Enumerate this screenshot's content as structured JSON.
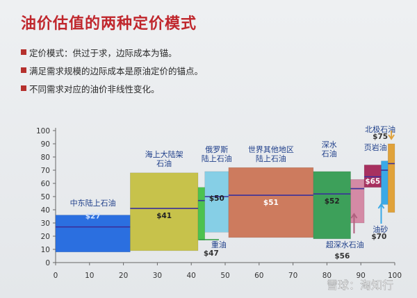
{
  "title": "油价估值的两种定价模式",
  "bullets": [
    "定价模式：供过于求，边际成本为锚。",
    "满足需求规模的边际成本是原油定价的锚点。",
    "不同需求对应的油价非线性变化。"
  ],
  "watermark": "雪球：淘知行",
  "chart_data": {
    "type": "bar",
    "x_ticks": [
      0,
      10,
      20,
      30,
      40,
      50,
      60,
      70,
      80,
      90,
      100
    ],
    "x_tick_labels": [
      "0",
      "10",
      "20",
      "30",
      "40",
      "50",
      "60",
      "70",
      "80",
      "90",
      "100"
    ],
    "xlim": [
      0,
      100
    ],
    "y_ticks": [
      0,
      10,
      20,
      30,
      40,
      50,
      60,
      70,
      80,
      90,
      100
    ],
    "ylim": [
      0,
      100
    ],
    "grid": false,
    "legend": "none",
    "series": [
      {
        "label": "中东陆上石油",
        "value_label": "$27",
        "x0": 0,
        "x1": 22,
        "y0": 8,
        "y1": 36,
        "price": 27,
        "color": "#2b6fe0",
        "value_color": "#cfe1ff"
      },
      {
        "label": "海上大陆架\n石油",
        "value_label": "$41",
        "x0": 22,
        "x1": 42,
        "y0": 9,
        "y1": 68,
        "price": 41,
        "color": "#c7c24b",
        "value_color": "#222222"
      },
      {
        "label": "重油",
        "value_label": "$47",
        "x0": 42,
        "x1": 44,
        "y0": 17,
        "y1": 57,
        "price": 47,
        "color": "#4cc24f",
        "value_color": "#222222"
      },
      {
        "label": "俄罗斯\n陆上石油",
        "value_label": "$50",
        "x0": 44,
        "x1": 51,
        "y0": 23,
        "y1": 69,
        "price": 50,
        "color": "#86cfe6",
        "value_color": "#222222"
      },
      {
        "label": "世界其他地区\n陆上石油",
        "value_label": "$51",
        "x0": 51,
        "x1": 76,
        "y0": 19,
        "y1": 72,
        "price": 51,
        "color": "#cd7b5e",
        "value_color": "#ffffff"
      },
      {
        "label": "深水\n石油",
        "value_label": "$52",
        "x0": 76,
        "x1": 87,
        "y0": 18,
        "y1": 69,
        "price": 52,
        "color": "#3da05a",
        "value_color": "#222222"
      },
      {
        "label": "超深水石油",
        "value_label": "$56",
        "x0": 87,
        "x1": 91,
        "y0": 30,
        "y1": 63,
        "price": 56,
        "color": "#d48aa5",
        "value_color": "#222222"
      },
      {
        "label": "页岩油",
        "value_label": "$65",
        "x0": 91,
        "x1": 96,
        "y0": 57,
        "y1": 74,
        "price": 65,
        "color": "#a7305f",
        "value_color": "#ffffff"
      },
      {
        "label": "油砂",
        "value_label": "$70",
        "x0": 96,
        "x1": 98,
        "y0": 44,
        "y1": 77,
        "price": 70,
        "color": "#3aa9e6",
        "value_color": "#222222"
      },
      {
        "label": "北极石油",
        "value_label": "$75",
        "x0": 98,
        "x1": 100,
        "y0": 38,
        "y1": 90,
        "price": 75,
        "color": "#e0a23a",
        "value_color": "#222222"
      }
    ]
  }
}
